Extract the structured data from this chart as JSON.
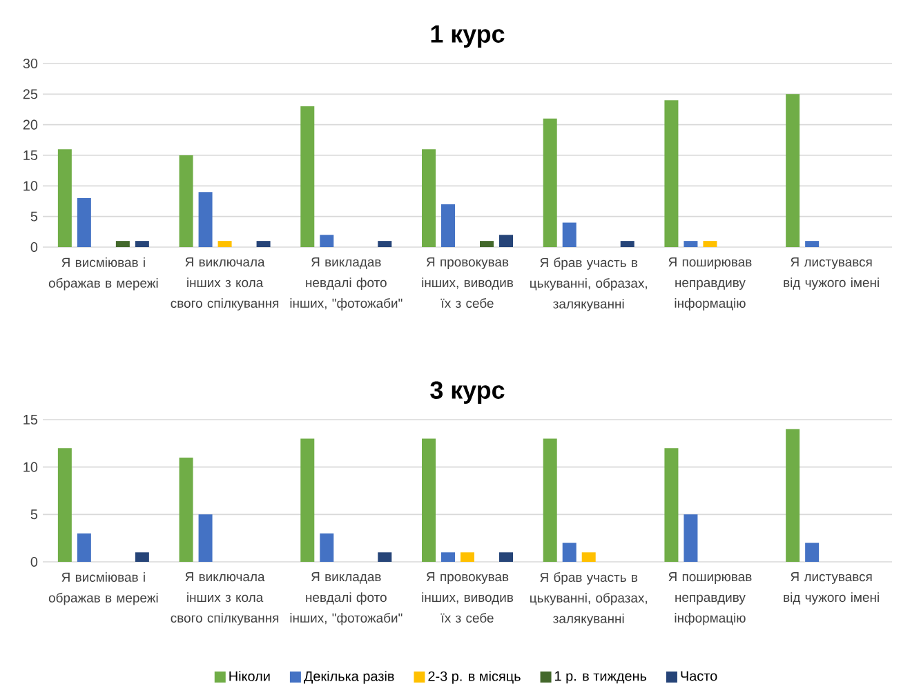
{
  "chart_data": [
    {
      "type": "bar",
      "title": "1 курс",
      "categories": [
        "Я висміював і ображав в мережі",
        "Я виключала інших з кола свого спілкування",
        "Я викладав невдалі фото інших, \"фотожаби\"",
        "Я провокував інших, виводив їх з себе",
        "Я брав участь в цькуванні, образах, залякуванні",
        "Я поширював неправдиву інформацію",
        "Я листувався від чужого імені"
      ],
      "series": [
        {
          "color": "#70ad47",
          "values": [
            16,
            15,
            23,
            16,
            21,
            24,
            25
          ]
        },
        {
          "color": "#4472c4",
          "values": [
            8,
            9,
            2,
            7,
            4,
            1,
            1
          ]
        },
        {
          "color": "#ffc000",
          "values": [
            0,
            1,
            0,
            0,
            0,
            1,
            0
          ]
        },
        {
          "color": "#43682b",
          "values": [
            1,
            0,
            0,
            1,
            0,
            0,
            0
          ]
        },
        {
          "color": "#264478",
          "values": [
            1,
            1,
            1,
            2,
            1,
            0,
            0
          ]
        }
      ],
      "ylim": [
        0,
        30
      ],
      "yticks": [
        0,
        5,
        10,
        15,
        20,
        25,
        30
      ],
      "grid": "y",
      "legend": false
    },
    {
      "type": "bar",
      "title": "3 курс",
      "categories": [
        "Я висміював і ображав в мережі",
        "Я виключала інших з кола свого спілкування",
        "Я викладав невдалі фото інших, \"фотожаби\"",
        "Я провокував інших, виводив їх з себе",
        "Я брав участь в цькуванні, образах, залякуванні",
        "Я поширював неправдиву інформацію",
        "Я листувався від чужого імені"
      ],
      "series": [
        {
          "name": "Ніколи",
          "color": "#70ad47",
          "values": [
            12,
            11,
            13,
            13,
            13,
            12,
            14
          ]
        },
        {
          "name": "Декілька разів",
          "color": "#4472c4",
          "values": [
            3,
            5,
            3,
            1,
            2,
            5,
            2
          ]
        },
        {
          "name": "2-3 р. в місяць",
          "color": "#ffc000",
          "values": [
            0,
            0,
            0,
            1,
            1,
            0,
            0
          ]
        },
        {
          "name": "1 р. в тиждень",
          "color": "#43682b",
          "values": [
            0,
            0,
            0,
            0,
            0,
            0,
            0
          ]
        },
        {
          "name": "Часто",
          "color": "#264478",
          "values": [
            1,
            0,
            1,
            1,
            0,
            0,
            0
          ]
        }
      ],
      "ylim": [
        0,
        15
      ],
      "yticks": [
        0,
        5,
        10,
        15
      ],
      "grid": "y",
      "legend": "bottom"
    }
  ]
}
